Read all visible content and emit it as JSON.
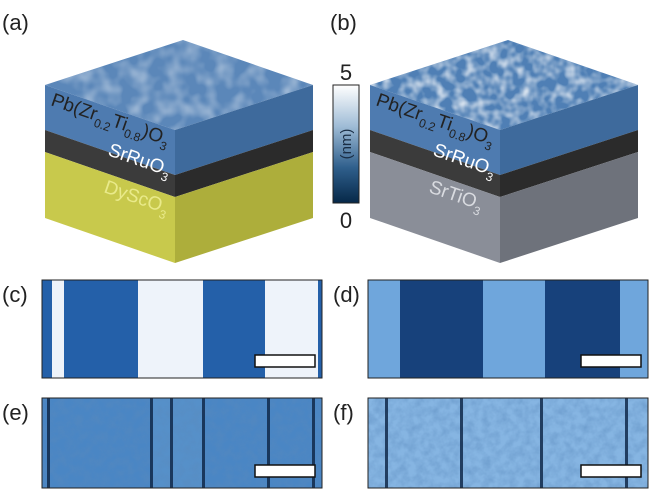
{
  "panels": {
    "a": {
      "label": "(a)",
      "film": [
        "Pb(Zr",
        "0.2",
        "Ti",
        "0.8",
        ")O",
        "3"
      ],
      "electrode": [
        "SrRuO",
        "3"
      ],
      "substrate": [
        "DyScO",
        "3"
      ]
    },
    "b": {
      "label": "(b)",
      "film": [
        "Pb(Zr",
        "0.2",
        "Ti",
        "0.8",
        ")O",
        "3"
      ],
      "electrode": [
        "SrRuO",
        "3"
      ],
      "substrate": [
        "SrTiO",
        "3"
      ]
    },
    "c": {
      "label": "(c)"
    },
    "d": {
      "label": "(d)"
    },
    "e": {
      "label": "(e)"
    },
    "f": {
      "label": "(f)"
    }
  },
  "colorbar": {
    "max": 5,
    "min": 0,
    "unit": "(nm)"
  }
}
